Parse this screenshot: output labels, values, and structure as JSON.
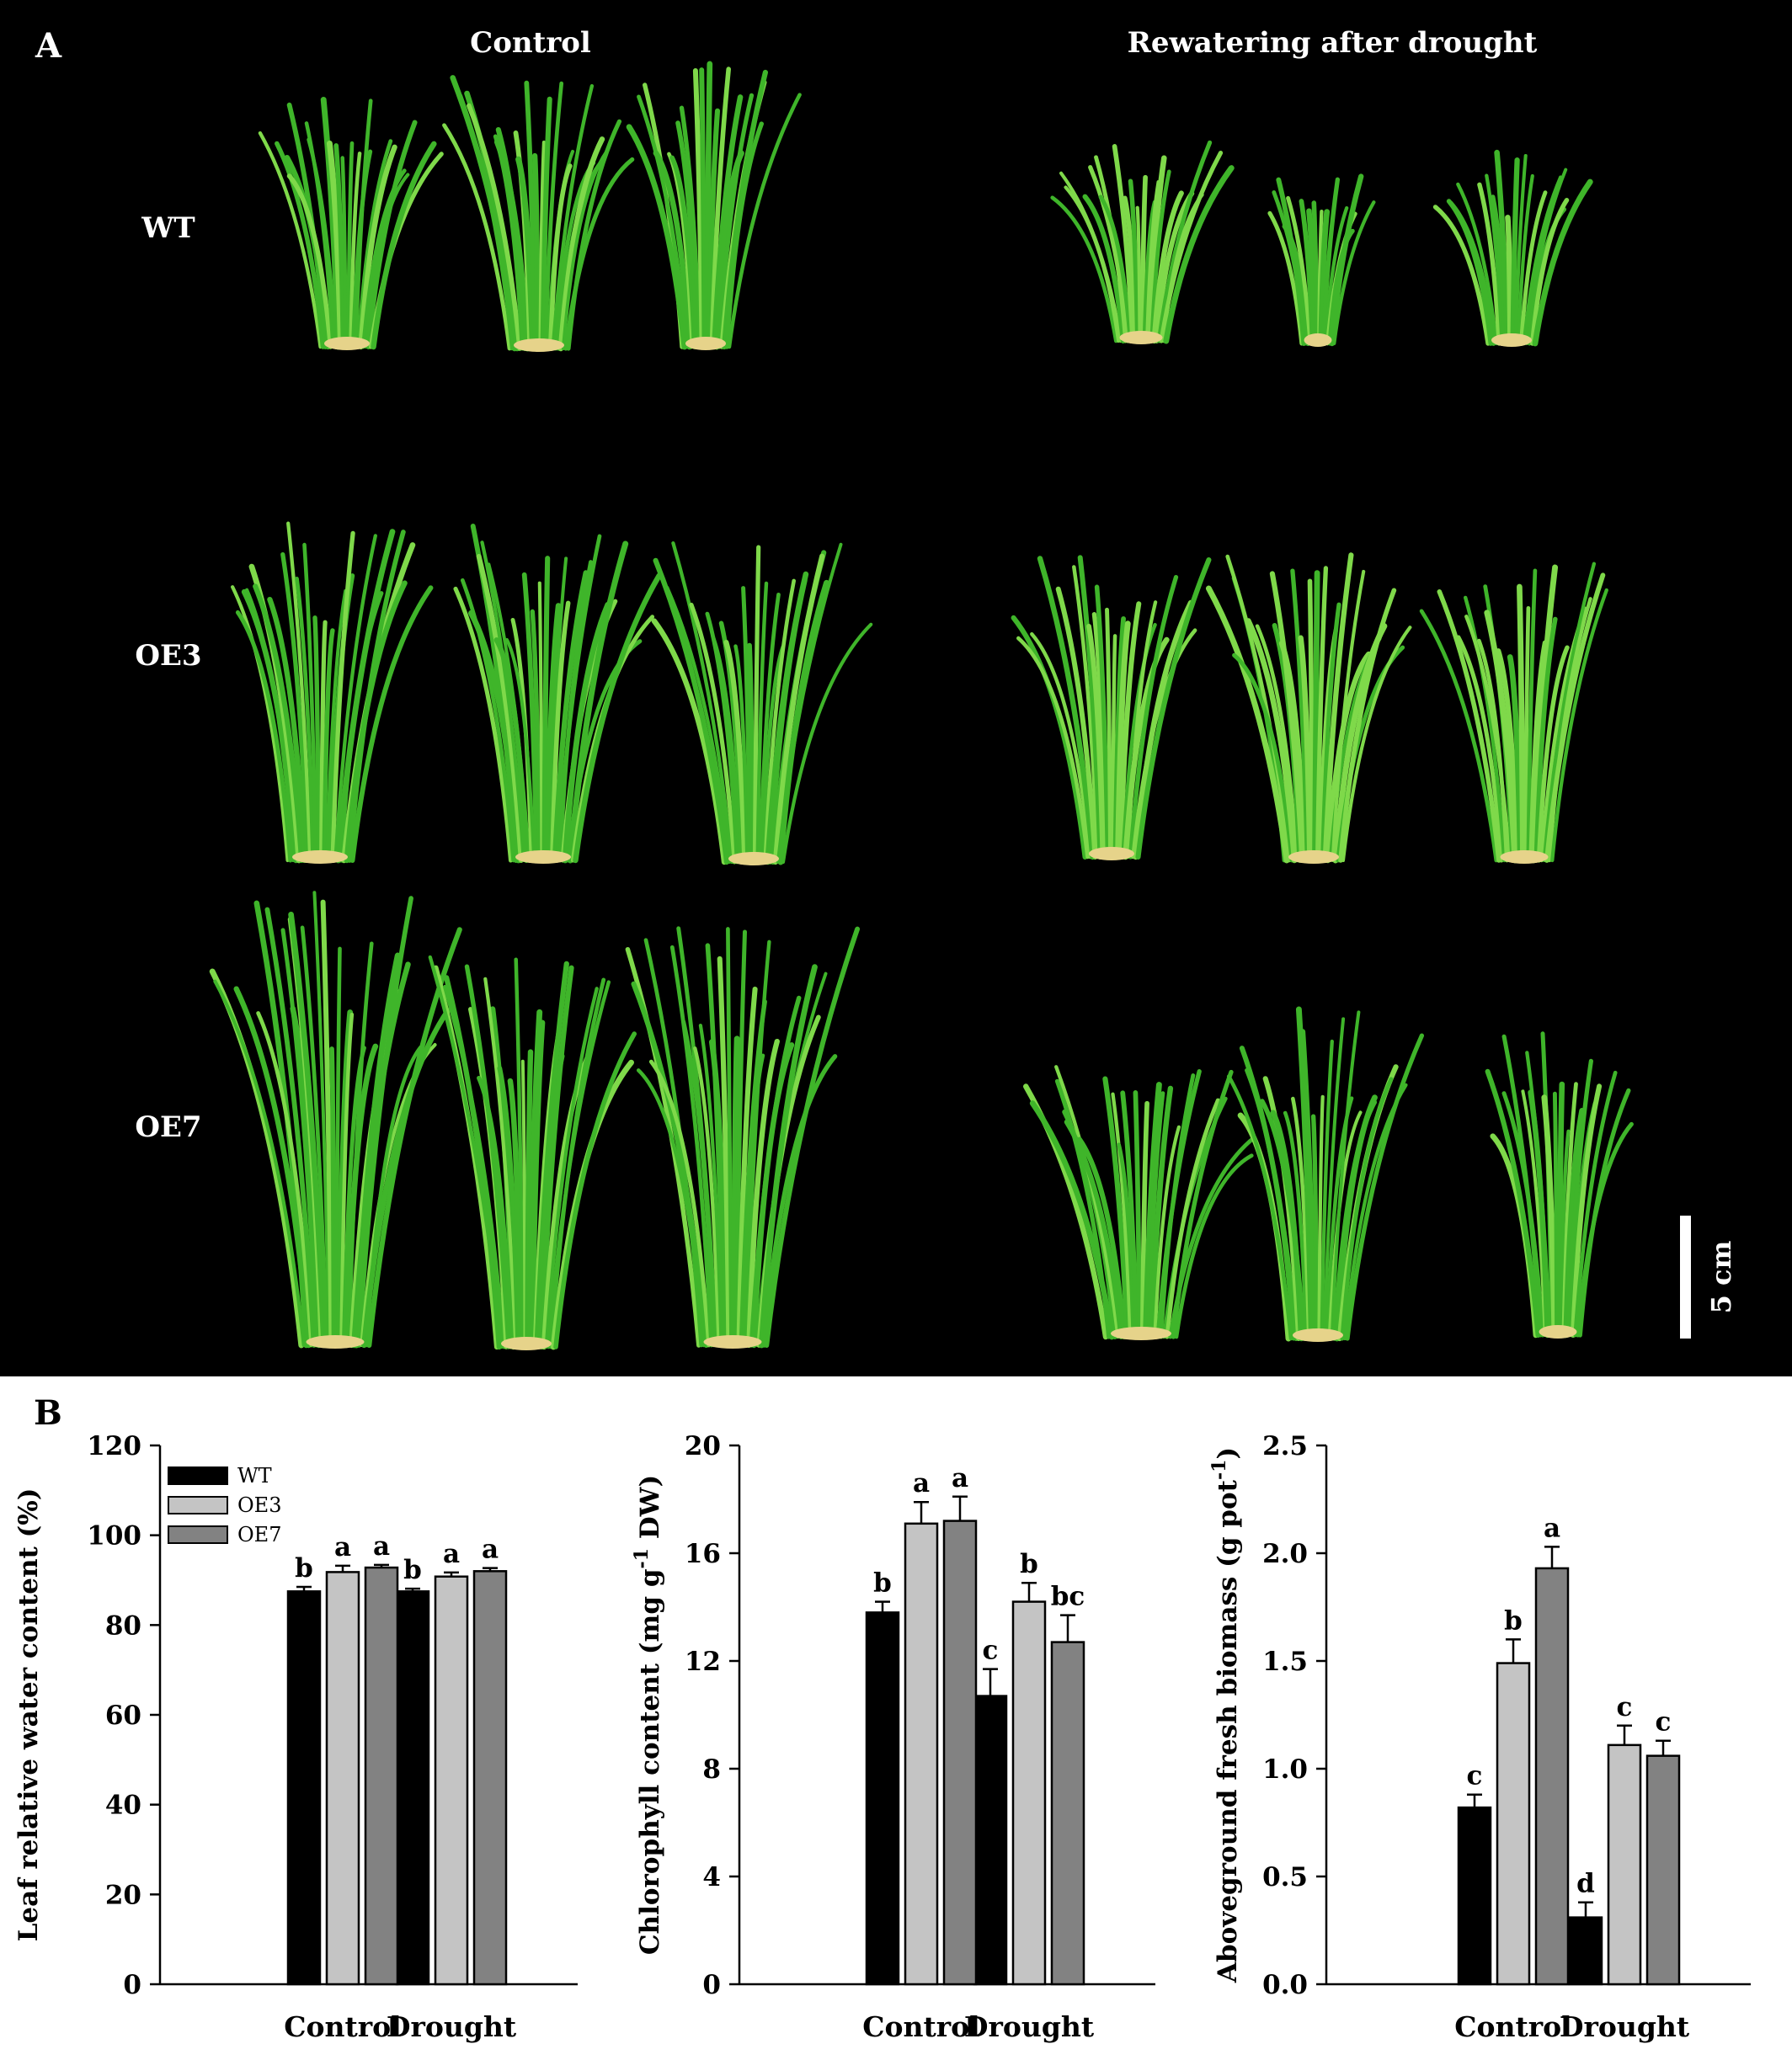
{
  "panel_a": {
    "label": "A",
    "col_control": "Control",
    "col_rewater": "Rewatering after drought",
    "rows": [
      "WT",
      "OE3",
      "OE7"
    ],
    "scale_label": "5 cm",
    "plant_color": "#3fb52a",
    "plant_color_light": "#7fd94a"
  },
  "panel_b": {
    "label": "B"
  },
  "legend": [
    {
      "name": "WT",
      "color": "#000000"
    },
    {
      "name": "OE3",
      "color": "#c4c4c4"
    },
    {
      "name": "OE7",
      "color": "#828282"
    }
  ],
  "chart_data": [
    {
      "type": "bar",
      "ylabel": "Leaf relative water content (%)",
      "ylabel_parts": [
        "Leaf relative water content (%)"
      ],
      "ylim": [
        0,
        120
      ],
      "yticks": [
        "0",
        "20",
        "40",
        "60",
        "80",
        "100",
        "120"
      ],
      "categories": [
        "Control",
        "Drought"
      ],
      "series": [
        {
          "name": "WT",
          "color": "#000000",
          "values": [
            87.5,
            87.5
          ],
          "errors": [
            1.0,
            0.6
          ],
          "letters": [
            "b",
            "b"
          ]
        },
        {
          "name": "OE3",
          "color": "#c4c4c4",
          "values": [
            91.8,
            90.8
          ],
          "errors": [
            1.4,
            0.9
          ],
          "letters": [
            "a",
            "a"
          ]
        },
        {
          "name": "OE7",
          "color": "#828282",
          "values": [
            92.8,
            92.0
          ],
          "errors": [
            0.6,
            0.7
          ],
          "letters": [
            "a",
            "a"
          ]
        }
      ]
    },
    {
      "type": "bar",
      "ylabel": "Chlorophyll content (mg g-1 DW)",
      "ylabel_parts": [
        "Chlorophyll content (mg g",
        "-1",
        " DW)"
      ],
      "ylim": [
        0,
        20
      ],
      "yticks": [
        "0",
        "4",
        "8",
        "12",
        "16",
        "20"
      ],
      "categories": [
        "Control",
        "Drought"
      ],
      "series": [
        {
          "name": "WT",
          "color": "#000000",
          "values": [
            13.8,
            10.7
          ],
          "errors": [
            0.4,
            1.0
          ],
          "letters": [
            "b",
            "c"
          ]
        },
        {
          "name": "OE3",
          "color": "#c4c4c4",
          "values": [
            17.1,
            14.2
          ],
          "errors": [
            0.8,
            0.7
          ],
          "letters": [
            "a",
            "b"
          ]
        },
        {
          "name": "OE7",
          "color": "#828282",
          "values": [
            17.2,
            12.7
          ],
          "errors": [
            0.9,
            1.0
          ],
          "letters": [
            "a",
            "bc"
          ]
        }
      ]
    },
    {
      "type": "bar",
      "ylabel": "Aboveground fresh biomass (g pot-1)",
      "ylabel_parts": [
        "Aboveground fresh biomass (g pot",
        "-1",
        ")"
      ],
      "ylim": [
        0,
        2.5
      ],
      "yticks": [
        "0.0",
        "0.5",
        "1.0",
        "1.5",
        "2.0",
        "2.5"
      ],
      "categories": [
        "Control",
        "Drought"
      ],
      "series": [
        {
          "name": "WT",
          "color": "#000000",
          "values": [
            0.82,
            0.31
          ],
          "errors": [
            0.06,
            0.07
          ],
          "letters": [
            "c",
            "d"
          ]
        },
        {
          "name": "OE3",
          "color": "#c4c4c4",
          "values": [
            1.49,
            1.11
          ],
          "errors": [
            0.11,
            0.09
          ],
          "letters": [
            "b",
            "c"
          ]
        },
        {
          "name": "OE7",
          "color": "#828282",
          "values": [
            1.93,
            1.06
          ],
          "errors": [
            0.1,
            0.07
          ],
          "letters": [
            "a",
            "c"
          ]
        }
      ]
    }
  ]
}
